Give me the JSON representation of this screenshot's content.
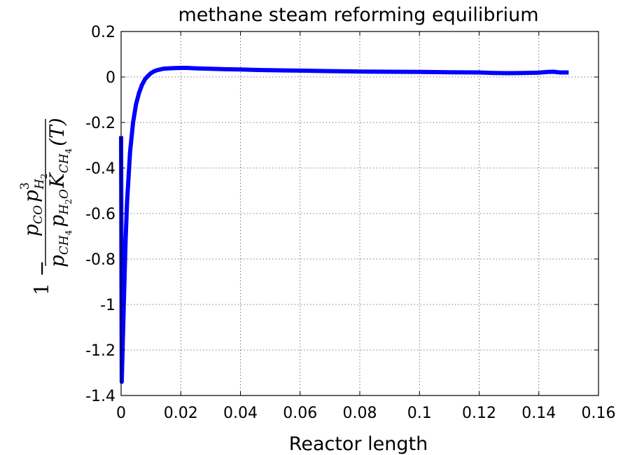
{
  "chart_data": {
    "type": "line",
    "title": "methane steam reforming equilibrium",
    "xlabel": "Reactor length",
    "ylabel": {
      "prefix": "1 −",
      "numerator_main": "p",
      "numerator_sub1": "CO",
      "numerator_main2": "p",
      "numerator_sub2": "H",
      "numerator_sub2_2": "2",
      "numerator_sup": "3",
      "denominator_main": "p",
      "denominator_sub1": "CH",
      "denominator_sub1_4": "4",
      "denominator_main2": "p",
      "denominator_sub2": "H",
      "denominator_sub2_2": "2",
      "denominator_sub2_O": "O",
      "denominator_main3": "K",
      "denominator_sub3": "CH",
      "denominator_sub3_4": "4",
      "denominator_arg": "(T)"
    },
    "xlim": [
      0,
      0.16
    ],
    "ylim": [
      -1.4,
      0.2
    ],
    "xticks": [
      "0",
      "0.02",
      "0.04",
      "0.06",
      "0.08",
      "0.1",
      "0.12",
      "0.14",
      "0.16"
    ],
    "yticks": [
      "0.2",
      "0",
      "-0.2",
      "-0.4",
      "-0.6",
      "-0.8",
      "-1",
      "-1.2",
      "-1.4"
    ],
    "xtick_values": [
      0,
      0.02,
      0.04,
      0.06,
      0.08,
      0.1,
      0.12,
      0.14,
      0.16
    ],
    "ytick_values": [
      0.2,
      0,
      -0.2,
      -0.4,
      -0.6,
      -0.8,
      -1,
      -1.2,
      -1.4
    ],
    "grid": true,
    "series": [
      {
        "color": "#0000ff",
        "x": [
          0,
          0.0002,
          0.0005,
          0.001,
          0.0015,
          0.002,
          0.003,
          0.004,
          0.005,
          0.006,
          0.007,
          0.008,
          0.009,
          0.01,
          0.011,
          0.012,
          0.014,
          0.016,
          0.018,
          0.02,
          0.022,
          0.025,
          0.03,
          0.035,
          0.04,
          0.045,
          0.05,
          0.055,
          0.06,
          0.065,
          0.07,
          0.075,
          0.08,
          0.09,
          0.1,
          0.11,
          0.12,
          0.125,
          0.13,
          0.135,
          0.14,
          0.143,
          0.145,
          0.147,
          0.15
        ],
        "y": [
          -0.26,
          -1.34,
          -1.2,
          -0.95,
          -0.72,
          -0.55,
          -0.33,
          -0.2,
          -0.12,
          -0.07,
          -0.035,
          -0.01,
          0.005,
          0.017,
          0.025,
          0.03,
          0.036,
          0.038,
          0.039,
          0.04,
          0.04,
          0.038,
          0.036,
          0.034,
          0.033,
          0.031,
          0.03,
          0.029,
          0.028,
          0.027,
          0.026,
          0.025,
          0.024,
          0.023,
          0.022,
          0.021,
          0.02,
          0.018,
          0.017,
          0.018,
          0.019,
          0.022,
          0.023,
          0.02,
          0.02
        ]
      }
    ]
  }
}
